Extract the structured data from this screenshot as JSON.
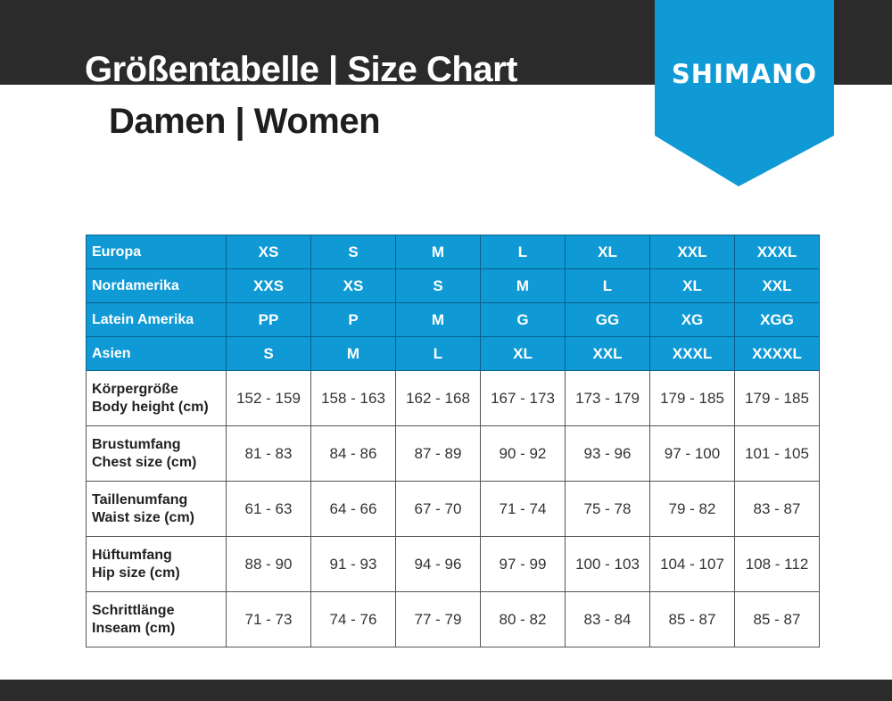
{
  "header": {
    "title": "Größentabelle | Size Chart",
    "subtitle": "Damen | Women",
    "logo_text": "SHIMANO"
  },
  "colors": {
    "brand_blue": "#0f9ad6",
    "dark_band": "#2b2b2b"
  },
  "size_rows": [
    {
      "label": "Europa",
      "values": [
        "XS",
        "S",
        "M",
        "L",
        "XL",
        "XXL",
        "XXXL"
      ]
    },
    {
      "label": "Nordamerika",
      "values": [
        "XXS",
        "XS",
        "S",
        "M",
        "L",
        "XL",
        "XXL"
      ]
    },
    {
      "label": "Latein Amerika",
      "values": [
        "PP",
        "P",
        "M",
        "G",
        "GG",
        "XG",
        "XGG"
      ]
    },
    {
      "label": "Asien",
      "values": [
        "S",
        "M",
        "L",
        "XL",
        "XXL",
        "XXXL",
        "XXXXL"
      ]
    }
  ],
  "measure_rows": [
    {
      "label_de": "Körpergröße",
      "label_en": "Body height (cm)",
      "values": [
        "152 - 159",
        "158 - 163",
        "162 - 168",
        "167 - 173",
        "173 - 179",
        "179 - 185",
        "179 - 185"
      ]
    },
    {
      "label_de": "Brustumfang",
      "label_en": "Chest size (cm)",
      "values": [
        "81 - 83",
        "84 - 86",
        "87 - 89",
        "90 - 92",
        "93 - 96",
        "97 - 100",
        "101 - 105"
      ]
    },
    {
      "label_de": "Taillenumfang",
      "label_en": "Waist size (cm)",
      "values": [
        "61 - 63",
        "64 - 66",
        "67 - 70",
        "71 - 74",
        "75 - 78",
        "79 - 82",
        "83 - 87"
      ]
    },
    {
      "label_de": "Hüftumfang",
      "label_en": "Hip size (cm)",
      "values": [
        "88 - 90",
        "91 - 93",
        "94 - 96",
        "97 - 99",
        "100 - 103",
        "104 - 107",
        "108 - 112"
      ]
    },
    {
      "label_de": "Schrittlänge",
      "label_en": "Inseam (cm)",
      "values": [
        "71 - 73",
        "74 - 76",
        "77 - 79",
        "80 - 82",
        "83 - 84",
        "85 - 87",
        "85 - 87"
      ]
    }
  ]
}
